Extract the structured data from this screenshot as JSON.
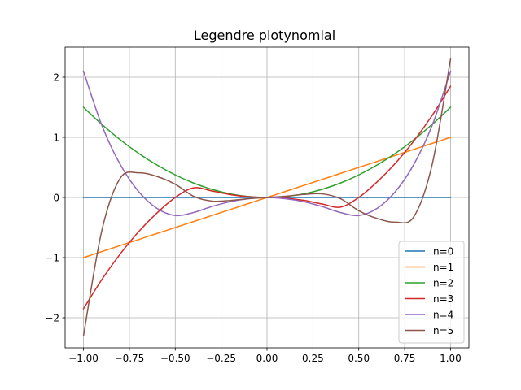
{
  "chart_data": {
    "type": "line",
    "title": "Legendre plotynomial",
    "xlabel": "",
    "ylabel": "",
    "xlim": [
      -1.1,
      1.1
    ],
    "ylim": [
      -2.5,
      2.5
    ],
    "grid": true,
    "legend_position": "lower-right",
    "xticks": [
      -1.0,
      -0.75,
      -0.5,
      -0.25,
      0.0,
      0.25,
      0.5,
      0.75,
      1.0
    ],
    "xtick_labels": [
      "−1.00",
      "−0.75",
      "−0.50",
      "−0.25",
      "0.00",
      "0.25",
      "0.50",
      "0.75",
      "1.00"
    ],
    "yticks": [
      -2,
      -1,
      0,
      1,
      2
    ],
    "ytick_labels": [
      "−2",
      "−1",
      "0",
      "1",
      "2"
    ],
    "x": [
      -1.0,
      -0.9,
      -0.8,
      -0.7,
      -0.6,
      -0.5,
      -0.4,
      -0.3,
      -0.2,
      -0.1,
      0.0,
      0.1,
      0.2,
      0.3,
      0.4,
      0.5,
      0.6,
      0.7,
      0.8,
      0.9,
      1.0
    ],
    "series": [
      {
        "name": "n=0",
        "color": "#1f77b4",
        "values": [
          0,
          0,
          0,
          0,
          0,
          0,
          0,
          0,
          0,
          0,
          0,
          0,
          0,
          0,
          0,
          0,
          0,
          0,
          0,
          0,
          0
        ]
      },
      {
        "name": "n=1",
        "color": "#ff7f0e",
        "values": [
          -1.0,
          -0.9,
          -0.8,
          -0.7,
          -0.6,
          -0.5,
          -0.4,
          -0.3,
          -0.2,
          -0.1,
          0.0,
          0.1,
          0.2,
          0.3,
          0.4,
          0.5,
          0.6,
          0.7,
          0.8,
          0.9,
          1.0
        ]
      },
      {
        "name": "n=2",
        "color": "#2ca02c",
        "values": [
          1.5,
          1.215,
          0.96,
          0.735,
          0.54,
          0.375,
          0.24,
          0.135,
          0.06,
          0.015,
          0.0,
          0.015,
          0.06,
          0.135,
          0.24,
          0.375,
          0.54,
          0.735,
          0.96,
          1.215,
          1.5
        ]
      },
      {
        "name": "n=3",
        "color": "#d62728",
        "values": [
          -1.85,
          -1.365,
          -0.94,
          -0.571,
          -0.259,
          0.0,
          0.16,
          0.108,
          0.048,
          0.012,
          0.0,
          -0.012,
          -0.048,
          -0.108,
          -0.16,
          0.0,
          0.259,
          0.571,
          0.94,
          1.365,
          1.85
        ]
      },
      {
        "name": "n=4",
        "color": "#9467bd",
        "values": [
          2.1,
          1.2,
          0.55,
          0.1,
          -0.18,
          -0.3,
          -0.25,
          -0.15,
          -0.07,
          -0.02,
          0.0,
          -0.02,
          -0.07,
          -0.15,
          -0.25,
          -0.3,
          -0.18,
          0.1,
          0.55,
          1.2,
          2.1
        ]
      },
      {
        "name": "n=5",
        "color": "#8c564b",
        "values": [
          -2.3,
          -0.55,
          0.32,
          0.41,
          0.35,
          0.22,
          0.02,
          -0.06,
          -0.05,
          -0.02,
          0.0,
          0.02,
          0.05,
          0.06,
          -0.02,
          -0.22,
          -0.35,
          -0.41,
          -0.32,
          0.55,
          2.3
        ]
      }
    ]
  }
}
